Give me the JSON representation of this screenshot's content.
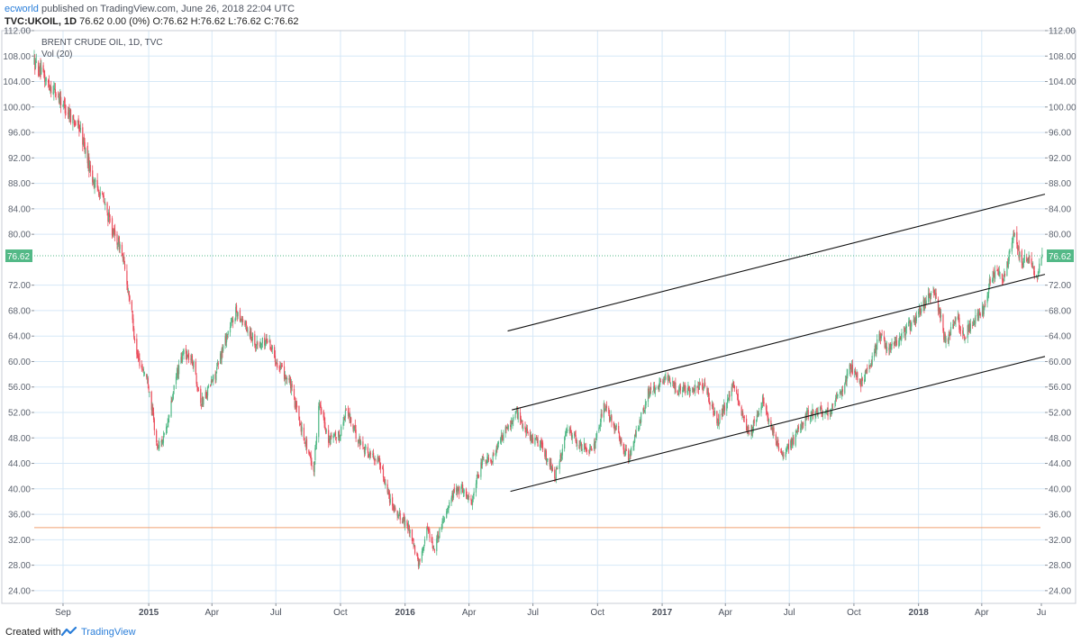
{
  "header": {
    "user": "ecworld",
    "published_text": " published on TradingView.com, June 26, 2018 22:04 UTC",
    "symbol": "TVC:UKOIL, 1D",
    "quote": " 76.62 0.00 (0%) O:76.62 H:76.62 L:76.62 C:76.62"
  },
  "legend": {
    "title": "BRENT CRUDE OIL, 1D, TVC",
    "indicator": "Vol (20)"
  },
  "footer": {
    "created_with": "Created with",
    "brand": "TradingView"
  },
  "colors": {
    "up": "#53b987",
    "down": "#eb4d5c",
    "grid": "#d6e8f7",
    "price_line": "#53b987",
    "support_line": "#f0a070",
    "channel": "#111111"
  },
  "chart_data": {
    "type": "candlestick",
    "title": "BRENT CRUDE OIL, 1D, TVC",
    "ylim": [
      22,
      112
    ],
    "y_ticks": [
      "112.00",
      "108.00",
      "104.00",
      "100.00",
      "96.00",
      "92.00",
      "88.00",
      "84.00",
      "80.00",
      "76.62",
      "72.00",
      "68.00",
      "64.00",
      "60.00",
      "56.00",
      "52.00",
      "48.00",
      "44.00",
      "40.00",
      "36.00",
      "32.00",
      "28.00",
      "24.00"
    ],
    "y_tick_values": [
      112,
      108,
      104,
      100,
      96,
      92,
      88,
      84,
      80,
      76.62,
      72,
      68,
      64,
      60,
      56,
      52,
      48,
      44,
      40,
      36,
      32,
      28,
      24
    ],
    "x_tick_labels": [
      "Sep",
      "2015",
      "Apr",
      "Jul",
      "Oct",
      "2016",
      "Apr",
      "Jul",
      "Oct",
      "2017",
      "Apr",
      "Jul",
      "Oct",
      "2018",
      "Apr",
      "Ju"
    ],
    "x_tick_dates": [
      "2014-09-01",
      "2015-01-01",
      "2015-04-01",
      "2015-07-01",
      "2015-10-01",
      "2016-01-01",
      "2016-04-01",
      "2016-07-01",
      "2016-10-01",
      "2017-01-01",
      "2017-04-01",
      "2017-07-01",
      "2017-10-01",
      "2018-01-01",
      "2018-04-01",
      "2018-07-01"
    ],
    "x_range": [
      "2014-07-22",
      "2018-06-30"
    ],
    "last_price": 76.62,
    "support_level": 33.9,
    "price_path": [
      [
        "2014-07-22",
        107.0
      ],
      [
        "2014-08-05",
        104.5
      ],
      [
        "2014-08-20",
        102.5
      ],
      [
        "2014-09-10",
        99.0
      ],
      [
        "2014-09-25",
        96.5
      ],
      [
        "2014-10-15",
        88.0
      ],
      [
        "2014-10-25",
        86.5
      ],
      [
        "2014-11-12",
        80.0
      ],
      [
        "2014-11-22",
        78.0
      ],
      [
        "2014-12-05",
        70.0
      ],
      [
        "2014-12-15",
        61.0
      ],
      [
        "2014-12-31",
        57.0
      ],
      [
        "2015-01-13",
        46.5
      ],
      [
        "2015-01-25",
        48.5
      ],
      [
        "2015-02-10",
        58.0
      ],
      [
        "2015-02-20",
        61.5
      ],
      [
        "2015-03-05",
        60.0
      ],
      [
        "2015-03-17",
        53.5
      ],
      [
        "2015-04-06",
        58.0
      ],
      [
        "2015-04-20",
        63.5
      ],
      [
        "2015-05-06",
        68.0
      ],
      [
        "2015-05-20",
        65.5
      ],
      [
        "2015-06-05",
        62.5
      ],
      [
        "2015-06-20",
        63.5
      ],
      [
        "2015-07-06",
        59.0
      ],
      [
        "2015-07-20",
        57.0
      ],
      [
        "2015-08-05",
        50.0
      ],
      [
        "2015-08-24",
        43.0
      ],
      [
        "2015-08-31",
        53.5
      ],
      [
        "2015-09-15",
        47.5
      ],
      [
        "2015-09-30",
        48.5
      ],
      [
        "2015-10-09",
        52.5
      ],
      [
        "2015-10-25",
        48.0
      ],
      [
        "2015-11-10",
        45.5
      ],
      [
        "2015-11-25",
        44.5
      ],
      [
        "2015-12-10",
        38.5
      ],
      [
        "2015-12-22",
        36.0
      ],
      [
        "2016-01-08",
        33.5
      ],
      [
        "2016-01-20",
        28.0
      ],
      [
        "2016-02-02",
        34.0
      ],
      [
        "2016-02-11",
        30.5
      ],
      [
        "2016-02-25",
        35.5
      ],
      [
        "2016-03-10",
        39.5
      ],
      [
        "2016-03-22",
        40.0
      ],
      [
        "2016-04-05",
        38.0
      ],
      [
        "2016-04-20",
        44.5
      ],
      [
        "2016-05-05",
        45.0
      ],
      [
        "2016-05-20",
        48.5
      ],
      [
        "2016-06-08",
        52.0
      ],
      [
        "2016-06-27",
        48.0
      ],
      [
        "2016-07-12",
        47.0
      ],
      [
        "2016-08-02",
        42.0
      ],
      [
        "2016-08-20",
        49.5
      ],
      [
        "2016-09-05",
        47.0
      ],
      [
        "2016-09-25",
        46.0
      ],
      [
        "2016-10-10",
        53.0
      ],
      [
        "2016-10-25",
        50.0
      ],
      [
        "2016-11-14",
        44.5
      ],
      [
        "2016-11-30",
        50.5
      ],
      [
        "2016-12-12",
        55.0
      ],
      [
        "2017-01-06",
        57.0
      ],
      [
        "2017-01-25",
        55.5
      ],
      [
        "2017-02-15",
        56.0
      ],
      [
        "2017-03-01",
        56.0
      ],
      [
        "2017-03-22",
        50.5
      ],
      [
        "2017-04-12",
        56.0
      ],
      [
        "2017-04-25",
        52.0
      ],
      [
        "2017-05-05",
        48.5
      ],
      [
        "2017-05-24",
        54.0
      ],
      [
        "2017-06-05",
        49.5
      ],
      [
        "2017-06-21",
        44.8
      ],
      [
        "2017-07-06",
        47.5
      ],
      [
        "2017-07-25",
        51.5
      ],
      [
        "2017-08-10",
        52.5
      ],
      [
        "2017-08-25",
        52.0
      ],
      [
        "2017-09-10",
        54.5
      ],
      [
        "2017-09-25",
        59.0
      ],
      [
        "2017-10-10",
        56.5
      ],
      [
        "2017-10-27",
        60.5
      ],
      [
        "2017-11-07",
        64.0
      ],
      [
        "2017-11-20",
        62.0
      ],
      [
        "2017-12-10",
        64.5
      ],
      [
        "2017-12-26",
        66.5
      ],
      [
        "2018-01-15",
        70.0
      ],
      [
        "2018-01-26",
        70.5
      ],
      [
        "2018-02-08",
        63.0
      ],
      [
        "2018-02-25",
        66.5
      ],
      [
        "2018-03-07",
        64.0
      ],
      [
        "2018-03-20",
        66.5
      ],
      [
        "2018-04-03",
        68.0
      ],
      [
        "2018-04-11",
        72.0
      ],
      [
        "2018-04-20",
        74.0
      ],
      [
        "2018-05-03",
        73.5
      ],
      [
        "2018-05-17",
        80.0
      ],
      [
        "2018-05-28",
        75.5
      ],
      [
        "2018-06-07",
        76.5
      ],
      [
        "2018-06-18",
        73.0
      ],
      [
        "2018-06-26",
        76.62
      ]
    ],
    "channel_lines": [
      {
        "start": [
          "2016-05-26",
          64.8
        ],
        "end": [
          "2018-06-30",
          86.3
        ]
      },
      {
        "start": [
          "2016-06-01",
          52.4
        ],
        "end": [
          "2018-06-30",
          73.7
        ]
      },
      {
        "start": [
          "2016-05-30",
          39.6
        ],
        "end": [
          "2018-06-30",
          60.8
        ]
      }
    ]
  }
}
